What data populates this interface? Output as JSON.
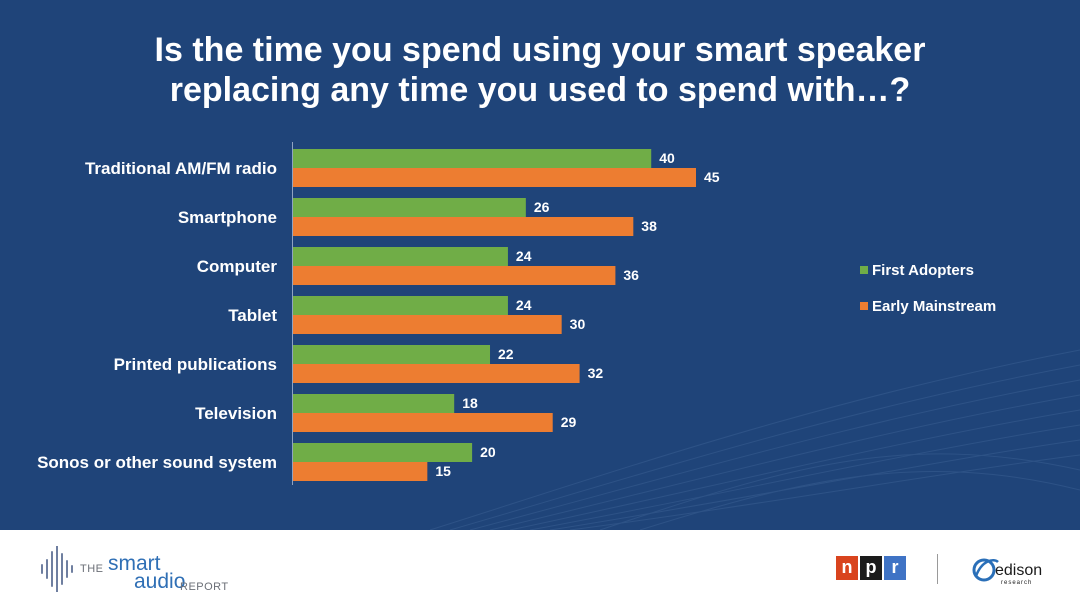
{
  "title_lines": [
    "Is the time you spend using your smart speaker",
    "replacing any time you used to spend with…?"
  ],
  "chart_data": {
    "type": "bar",
    "orientation": "horizontal",
    "categories": [
      "Traditional AM/FM radio",
      "Smartphone",
      "Computer",
      "Tablet",
      "Printed publications",
      "Television",
      "Sonos or other sound system"
    ],
    "series": [
      {
        "name": "First Adopters",
        "color": "#70ad47",
        "values": [
          40,
          26,
          24,
          24,
          22,
          18,
          20
        ]
      },
      {
        "name": "Early Mainstream",
        "color": "#ed7d31",
        "values": [
          45,
          38,
          36,
          30,
          32,
          29,
          15
        ]
      }
    ],
    "xlim": [
      0,
      45
    ],
    "data_labels": true,
    "legend_position": "right",
    "grid": false
  },
  "footer": {
    "smart_audio_logo": {
      "the": "THE",
      "smart": "smart",
      "audio": "audio",
      "report": "REPORT"
    },
    "npr_logo": [
      "n",
      "p",
      "r"
    ],
    "edison_logo": {
      "name": "edison",
      "sub": "research"
    }
  },
  "colors": {
    "background": "#1f4479",
    "text": "#ffffff"
  }
}
